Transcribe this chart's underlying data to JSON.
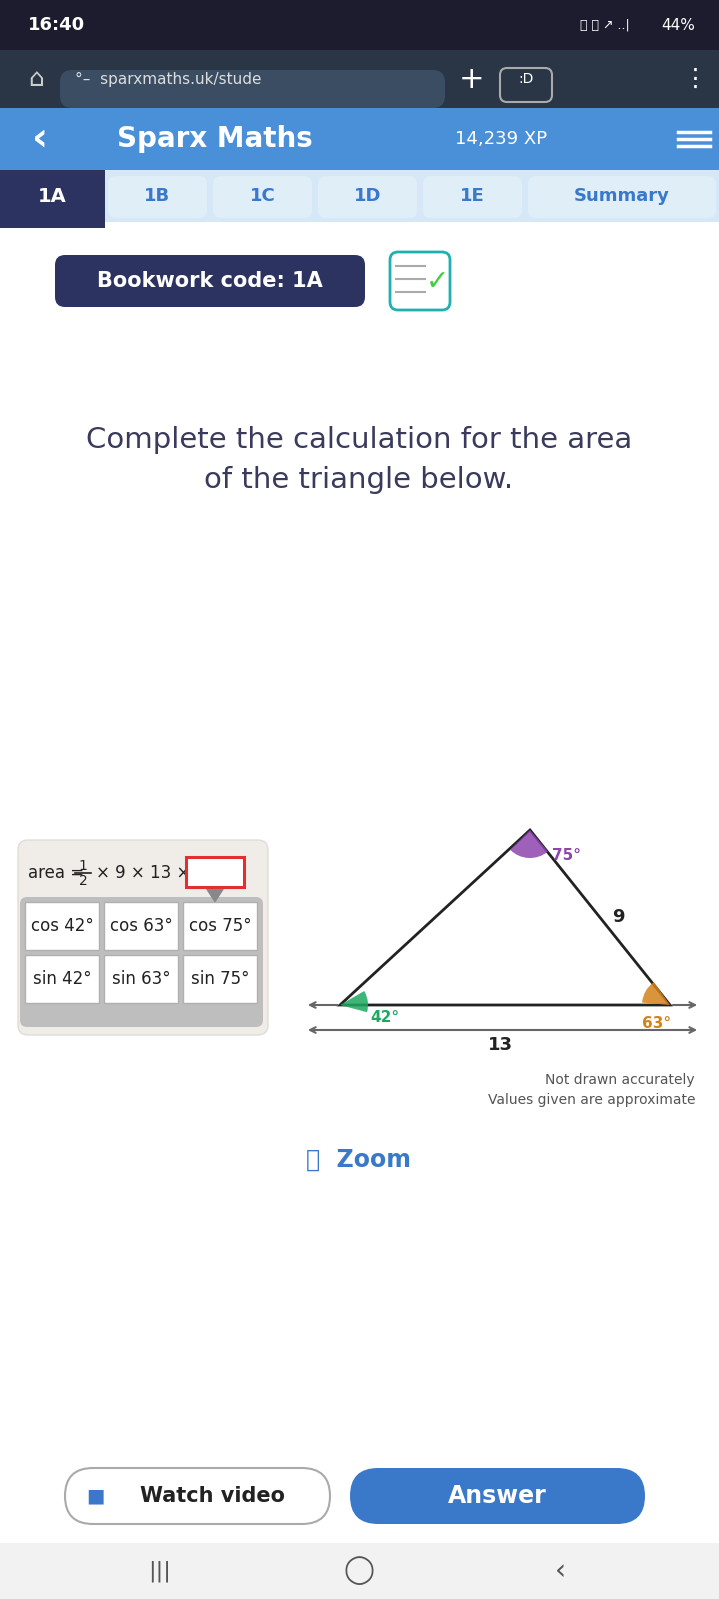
{
  "status_bar_time": "16:40",
  "status_bar_battery": "44%",
  "url_text": "sparxmaths.uk/stude",
  "header_title": "Sparx Maths",
  "header_xp": "14,239 XP",
  "tabs": [
    "1A",
    "1B",
    "1C",
    "1D",
    "1E",
    "Summary"
  ],
  "active_tab": "1A",
  "bookwork_code": "Bookwork code: 1A",
  "question_line1": "Complete the calculation for the area",
  "question_line2": "of the triangle below.",
  "answer_options_row1": [
    "cos 42°",
    "cos 63°",
    "cos 75°"
  ],
  "answer_options_row2": [
    "sin 42°",
    "sin 63°",
    "sin 75°"
  ],
  "triangle_angle_colors": [
    "#1daa60",
    "#d4821a",
    "#8e44ad"
  ],
  "note_line1": "Not drawn accurately",
  "note_line2": "Values given are approximate",
  "zoom_text": "Zoom",
  "watch_video": "Watch video",
  "answer_btn": "Answer",
  "bg_color": "#ffffff",
  "header_bg": "#4a90d9",
  "tab_active_bg": "#2c3360",
  "tab_inactive_bg": "#d6e8f7",
  "tab_text_active": "#ffffff",
  "tab_text_inactive": "#3a78c9",
  "bookwork_bg": "#2c3360",
  "statusbar_bg": "#1c1c2e",
  "browser_bg": "#2a3546",
  "formula_box_color": "#e03030",
  "options_panel_bg": "#bebebe",
  "cell_bg": "#ffffff",
  "zoom_color": "#3a78c9",
  "answer_btn_bg": "#3a78c9",
  "question_color": "#3a3a5c"
}
